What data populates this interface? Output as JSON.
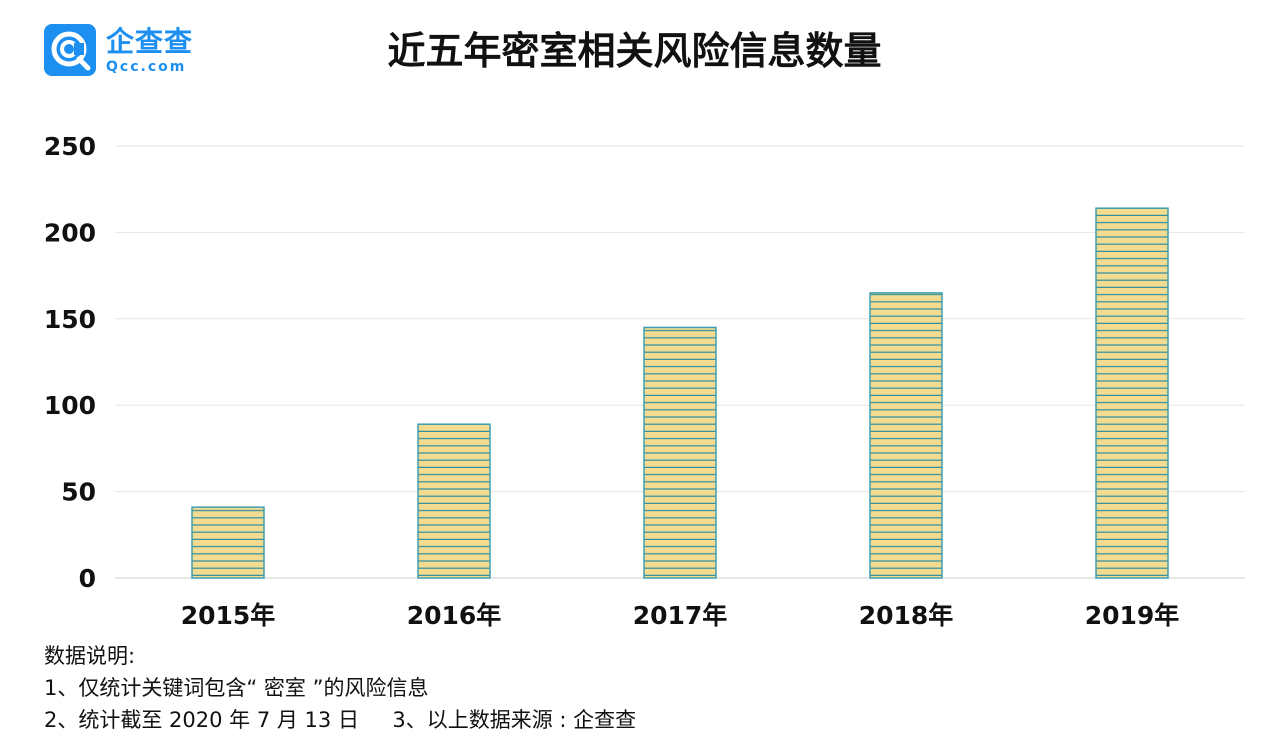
{
  "logo": {
    "name": "企查查",
    "domain": "Qcc.com",
    "icon": "qcc-magnifier-logo"
  },
  "colors": {
    "bar_fill": "#f3dc8f",
    "bar_edge": "#3f9fb0",
    "bar_stripe": "#2f8fa0",
    "grid": "#e6e6e6",
    "brand": "#1d8ff0"
  },
  "chart_data": {
    "type": "bar",
    "title": "近五年密室相关风险信息数量",
    "categories": [
      "2015年",
      "2016年",
      "2017年",
      "2018年",
      "2019年"
    ],
    "values": [
      41,
      89,
      145,
      165,
      214
    ],
    "xlabel": "",
    "ylabel": "",
    "ylim": [
      0,
      250
    ],
    "yticks": [
      "0",
      "50",
      "100",
      "150",
      "200",
      "250"
    ],
    "grid": true,
    "bar_style": "horizontal-striped"
  },
  "notes": {
    "heading": "数据说明:",
    "line1": "1、仅统计关键词包含“ 密室 ”的风险信息",
    "line2a": "2、统计截至 2020 年 7 月 13 日",
    "line2b": "3、以上数据来源 : 企查查"
  }
}
